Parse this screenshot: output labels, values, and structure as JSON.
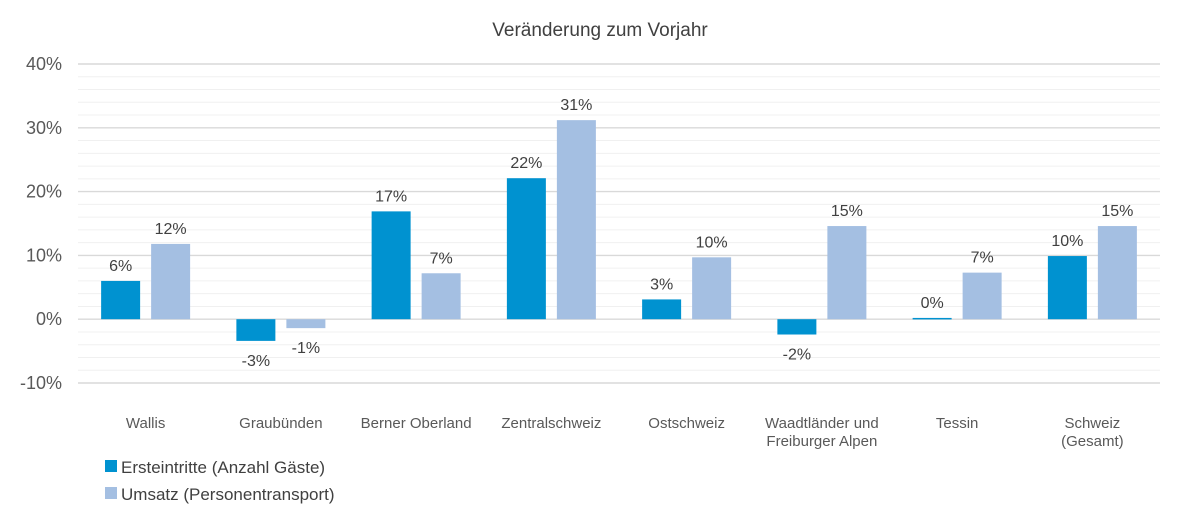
{
  "chart_data": {
    "type": "bar",
    "title": "Veränderung zum Vorjahr",
    "xlabel": "",
    "ylabel": "",
    "ylim": [
      -10,
      40
    ],
    "yticks": [
      -10,
      0,
      10,
      20,
      30,
      40
    ],
    "ytick_labels": [
      "-10%",
      "0%",
      "10%",
      "20%",
      "30%",
      "40%"
    ],
    "minor_grid_step": 2,
    "grid": true,
    "legend_position": "bottom-left",
    "categories": [
      [
        "Wallis"
      ],
      [
        "Graubünden"
      ],
      [
        "Berner Oberland"
      ],
      [
        "Zentralschweiz"
      ],
      [
        "Ostschweiz"
      ],
      [
        "Waadtländer und",
        "Freiburger Alpen"
      ],
      [
        "Tessin"
      ],
      [
        "Schweiz",
        "(Gesamt)"
      ]
    ],
    "series": [
      {
        "name": "Ersteintritte (Anzahl Gäste)",
        "color": "#0092D0",
        "values": [
          6.0,
          -3.4,
          16.9,
          22.1,
          3.1,
          -2.4,
          0.2,
          9.9
        ],
        "labels": [
          "6%",
          "-3%",
          "17%",
          "22%",
          "3%",
          "-2%",
          "0%",
          "10%"
        ]
      },
      {
        "name": "Umsatz (Personentransport)",
        "color": "#A4BFE2",
        "values": [
          11.8,
          -1.4,
          7.2,
          31.2,
          9.7,
          14.6,
          7.3,
          14.6
        ],
        "labels": [
          "12%",
          "-1%",
          "7%",
          "31%",
          "10%",
          "15%",
          "7%",
          "15%"
        ]
      }
    ]
  }
}
